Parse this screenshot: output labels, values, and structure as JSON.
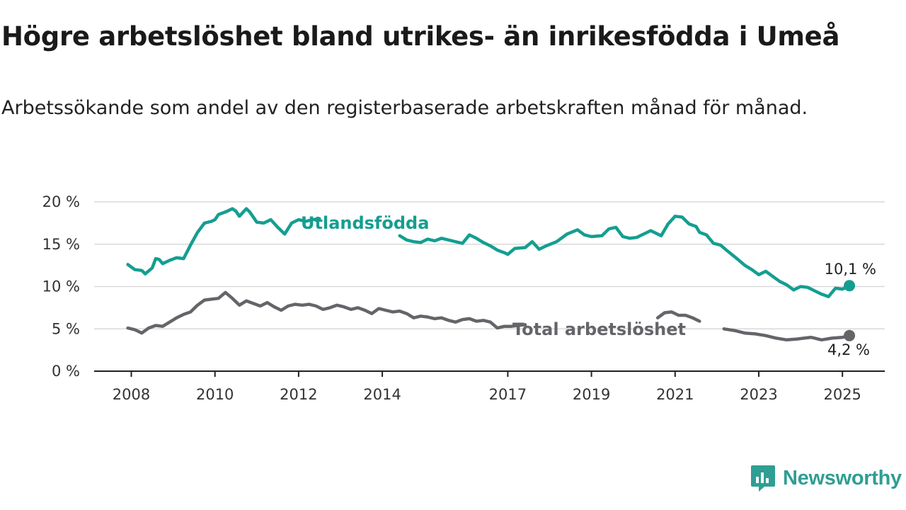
{
  "chart_data": {
    "type": "line",
    "title": "Högre arbetslöshet bland utrikes- än inrikesfödda i Umeå",
    "subtitle": "Arbetssökande som andel av den registerbaserade arbetskraften månad för månad.",
    "xlabel": "",
    "ylabel": "",
    "x_ticks": [
      "2008",
      "2010",
      "2012",
      "2014",
      "2017",
      "2019",
      "2021",
      "2023",
      "2025"
    ],
    "y_ticks": [
      "0 %",
      "5 %",
      "10 %",
      "15 %",
      "20 %"
    ],
    "ylim": [
      0,
      20
    ],
    "grid": true,
    "legend": "inline labels",
    "series": [
      {
        "name": "Utlandsfödda",
        "color": "#149e91",
        "end_label": "10,1 %",
        "points": [
          [
            "2007-12",
            12.6
          ],
          [
            "2008-02",
            12.0
          ],
          [
            "2008-04",
            11.9
          ],
          [
            "2008-05",
            11.5
          ],
          [
            "2008-07",
            12.2
          ],
          [
            "2008-08",
            13.3
          ],
          [
            "2008-09",
            13.2
          ],
          [
            "2008-10",
            12.7
          ],
          [
            "2008-12",
            13.1
          ],
          [
            "2009-02",
            13.4
          ],
          [
            "2009-04",
            13.3
          ],
          [
            "2009-06",
            14.9
          ],
          [
            "2009-08",
            16.4
          ],
          [
            "2009-10",
            17.5
          ],
          [
            "2009-12",
            17.7
          ],
          [
            "2010-01",
            17.9
          ],
          [
            "2010-02",
            18.5
          ],
          [
            "2010-04",
            18.8
          ],
          [
            "2010-06",
            19.2
          ],
          [
            "2010-07",
            18.9
          ],
          [
            "2010-08",
            18.3
          ],
          [
            "2010-10",
            19.2
          ],
          [
            "2010-11",
            18.8
          ],
          [
            "2011-01",
            17.6
          ],
          [
            "2011-03",
            17.5
          ],
          [
            "2011-05",
            17.9
          ],
          [
            "2011-07",
            17.0
          ],
          [
            "2011-09",
            16.2
          ],
          [
            "2011-11",
            17.5
          ],
          [
            "2012-01",
            17.9
          ],
          [
            "2012-03",
            17.7
          ],
          [
            "2012-05",
            17.9
          ],
          [
            "2012-07",
            18.0
          ],
          null,
          [
            "2014-06",
            16.0
          ],
          [
            "2014-08",
            15.5
          ],
          [
            "2014-10",
            15.3
          ],
          [
            "2014-12",
            15.2
          ],
          [
            "2015-02",
            15.6
          ],
          [
            "2015-04",
            15.4
          ],
          [
            "2015-06",
            15.7
          ],
          [
            "2015-09",
            15.4
          ],
          [
            "2015-12",
            15.1
          ],
          [
            "2016-02",
            16.1
          ],
          [
            "2016-04",
            15.7
          ],
          [
            "2016-06",
            15.2
          ],
          [
            "2016-08",
            14.8
          ],
          [
            "2016-10",
            14.3
          ],
          [
            "2016-12",
            14.0
          ],
          [
            "2017-01",
            13.8
          ],
          [
            "2017-03",
            14.5
          ],
          [
            "2017-06",
            14.6
          ],
          [
            "2017-08",
            15.3
          ],
          [
            "2017-10",
            14.4
          ],
          [
            "2017-12",
            14.8
          ],
          [
            "2018-03",
            15.3
          ],
          [
            "2018-06",
            16.2
          ],
          [
            "2018-09",
            16.7
          ],
          [
            "2018-11",
            16.1
          ],
          [
            "2019-01",
            15.9
          ],
          [
            "2019-04",
            16.0
          ],
          [
            "2019-06",
            16.8
          ],
          [
            "2019-08",
            17.0
          ],
          [
            "2019-10",
            15.9
          ],
          [
            "2019-12",
            15.7
          ],
          [
            "2020-02",
            15.8
          ],
          [
            "2020-04",
            16.2
          ],
          [
            "2020-06",
            16.6
          ],
          [
            "2020-09",
            16.0
          ],
          [
            "2020-11",
            17.4
          ],
          [
            "2021-01",
            18.3
          ],
          [
            "2021-03",
            18.2
          ],
          [
            "2021-05",
            17.4
          ],
          [
            "2021-07",
            17.1
          ],
          [
            "2021-08",
            16.4
          ],
          [
            "2021-10",
            16.1
          ],
          [
            "2021-12",
            15.1
          ],
          [
            "2022-02",
            14.9
          ],
          [
            "2022-04",
            14.2
          ],
          [
            "2022-07",
            13.2
          ],
          [
            "2022-09",
            12.5
          ],
          [
            "2022-11",
            12.0
          ],
          [
            "2023-01",
            11.4
          ],
          [
            "2023-03",
            11.8
          ],
          [
            "2023-05",
            11.2
          ],
          [
            "2023-07",
            10.6
          ],
          [
            "2023-09",
            10.2
          ],
          [
            "2023-11",
            9.6
          ],
          [
            "2024-01",
            10.0
          ],
          [
            "2024-03",
            9.9
          ],
          [
            "2024-05",
            9.5
          ],
          [
            "2024-07",
            9.1
          ],
          [
            "2024-09",
            8.8
          ],
          [
            "2024-11",
            9.8
          ],
          [
            "2025-01",
            9.7
          ],
          [
            "2025-03",
            10.1
          ]
        ]
      },
      {
        "name": "Total arbetslöshet",
        "color": "#656469",
        "end_label": "4,2 %",
        "points": [
          [
            "2007-12",
            5.1
          ],
          [
            "2008-02",
            4.9
          ],
          [
            "2008-04",
            4.5
          ],
          [
            "2008-06",
            5.1
          ],
          [
            "2008-08",
            5.4
          ],
          [
            "2008-10",
            5.3
          ],
          [
            "2008-12",
            5.8
          ],
          [
            "2009-02",
            6.3
          ],
          [
            "2009-04",
            6.7
          ],
          [
            "2009-06",
            7.0
          ],
          [
            "2009-08",
            7.8
          ],
          [
            "2009-10",
            8.4
          ],
          [
            "2009-12",
            8.5
          ],
          [
            "2010-02",
            8.6
          ],
          [
            "2010-04",
            9.3
          ],
          [
            "2010-06",
            8.6
          ],
          [
            "2010-08",
            7.8
          ],
          [
            "2010-10",
            8.3
          ],
          [
            "2010-12",
            8.0
          ],
          [
            "2011-02",
            7.7
          ],
          [
            "2011-04",
            8.1
          ],
          [
            "2011-06",
            7.6
          ],
          [
            "2011-08",
            7.2
          ],
          [
            "2011-10",
            7.7
          ],
          [
            "2011-12",
            7.9
          ],
          [
            "2012-02",
            7.8
          ],
          [
            "2012-04",
            7.9
          ],
          [
            "2012-06",
            7.7
          ],
          [
            "2012-08",
            7.3
          ],
          [
            "2012-10",
            7.5
          ],
          [
            "2012-12",
            7.8
          ],
          [
            "2013-02",
            7.6
          ],
          [
            "2013-04",
            7.3
          ],
          [
            "2013-06",
            7.5
          ],
          [
            "2013-08",
            7.2
          ],
          [
            "2013-10",
            6.8
          ],
          [
            "2013-12",
            7.4
          ],
          [
            "2014-02",
            7.2
          ],
          [
            "2014-04",
            7.0
          ],
          [
            "2014-06",
            7.1
          ],
          [
            "2014-08",
            6.8
          ],
          [
            "2014-10",
            6.3
          ],
          [
            "2014-12",
            6.5
          ],
          [
            "2015-02",
            6.4
          ],
          [
            "2015-04",
            6.2
          ],
          [
            "2015-06",
            6.3
          ],
          [
            "2015-08",
            6.0
          ],
          [
            "2015-10",
            5.8
          ],
          [
            "2015-12",
            6.1
          ],
          [
            "2016-02",
            6.2
          ],
          [
            "2016-04",
            5.9
          ],
          [
            "2016-06",
            6.0
          ],
          [
            "2016-08",
            5.8
          ],
          [
            "2016-10",
            5.1
          ],
          [
            "2016-12",
            5.3
          ],
          [
            "2017-02",
            5.3
          ],
          [
            "2017-04",
            5.4
          ],
          [
            "2017-06",
            5.5
          ],
          null,
          [
            "2020-08",
            6.3
          ],
          [
            "2020-10",
            6.9
          ],
          [
            "2020-12",
            7.0
          ],
          [
            "2021-02",
            6.6
          ],
          [
            "2021-04",
            6.6
          ],
          [
            "2021-06",
            6.3
          ],
          [
            "2021-08",
            5.9
          ],
          null,
          [
            "2022-03",
            5.0
          ],
          [
            "2022-06",
            4.8
          ],
          [
            "2022-09",
            4.5
          ],
          [
            "2022-12",
            4.4
          ],
          [
            "2023-03",
            4.2
          ],
          [
            "2023-06",
            3.9
          ],
          [
            "2023-09",
            3.7
          ],
          [
            "2023-12",
            3.8
          ],
          [
            "2024-02",
            3.9
          ],
          [
            "2024-04",
            4.0
          ],
          [
            "2024-07",
            3.7
          ],
          [
            "2024-10",
            3.9
          ],
          [
            "2025-01",
            4.0
          ],
          [
            "2025-03",
            4.2
          ]
        ]
      }
    ]
  },
  "branding": {
    "name": "Newsworthy",
    "color": "#2f9e93",
    "icon": "newsworthy-logo-icon"
  }
}
